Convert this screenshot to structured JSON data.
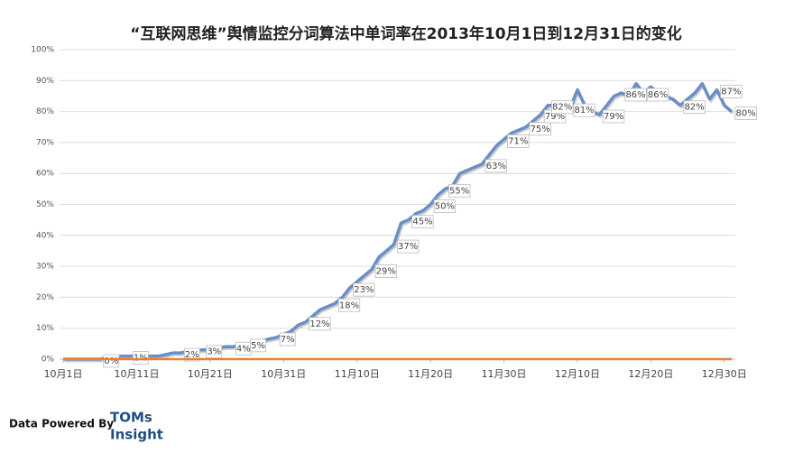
{
  "chart_data": {
    "type": "line",
    "title": "“互联网思维”舆情监控分词算法中单词率在2013年10月1日到12月31日的变化",
    "categories": [
      "10月1日",
      null,
      null,
      null,
      null,
      null,
      null,
      null,
      null,
      null,
      "10月11日",
      null,
      null,
      null,
      null,
      null,
      null,
      null,
      null,
      null,
      "10月21日",
      null,
      null,
      null,
      null,
      null,
      null,
      null,
      null,
      null,
      "10月31日",
      null,
      null,
      null,
      null,
      null,
      null,
      null,
      null,
      null,
      "11月10日",
      null,
      null,
      null,
      null,
      null,
      null,
      null,
      null,
      null,
      "11月20日",
      null,
      null,
      null,
      null,
      null,
      null,
      null,
      null,
      null,
      "11月30日",
      null,
      null,
      null,
      null,
      null,
      null,
      null,
      null,
      null,
      "12月10日",
      null,
      null,
      null,
      null,
      null,
      null,
      null,
      null,
      null,
      "12月20日",
      null,
      null,
      null,
      null,
      null,
      null,
      null,
      null,
      null,
      "12月30日",
      null
    ],
    "series": [
      {
        "color": "#6a8fc7",
        "values": [
          0,
          0,
          0,
          0,
          0,
          0,
          0.5,
          0.5,
          1,
          1,
          1,
          1,
          1,
          1,
          1.5,
          2,
          2,
          2.5,
          3,
          3,
          3,
          3.5,
          4,
          4,
          4.5,
          5,
          5,
          6,
          6.5,
          7,
          8,
          9,
          11,
          12,
          14,
          16,
          17,
          18,
          20,
          23,
          25,
          27,
          29,
          33,
          35,
          37,
          44,
          45,
          47,
          48,
          50,
          53,
          55,
          56,
          60,
          61,
          62,
          63,
          66,
          69,
          71,
          73,
          74,
          75,
          77,
          79,
          82,
          82,
          82,
          81,
          87,
          82,
          80,
          79,
          82,
          85,
          86,
          85,
          89,
          86,
          88,
          86,
          85,
          84,
          82,
          84,
          86,
          89,
          84,
          87,
          82,
          80
        ],
        "value_labels": [
          null,
          null,
          null,
          null,
          null,
          "0%",
          null,
          null,
          null,
          "1%",
          null,
          null,
          null,
          null,
          null,
          null,
          "2%",
          null,
          null,
          "3%",
          null,
          null,
          null,
          "4%",
          null,
          "5%",
          null,
          null,
          null,
          "7%",
          null,
          null,
          null,
          "12%",
          null,
          null,
          null,
          "18%",
          null,
          "23%",
          null,
          null,
          "29%",
          null,
          null,
          "37%",
          null,
          "45%",
          null,
          null,
          "50%",
          null,
          "55%",
          null,
          null,
          null,
          null,
          "63%",
          null,
          null,
          "71%",
          null,
          null,
          "75%",
          null,
          "79%",
          "82%",
          null,
          null,
          "81%",
          null,
          null,
          null,
          "79%",
          null,
          null,
          "86%",
          null,
          null,
          "86%",
          null,
          null,
          null,
          null,
          "82%",
          null,
          null,
          null,
          null,
          "87%",
          null,
          "80%"
        ]
      },
      {
        "color": "#ed7d31",
        "values": [
          0,
          0,
          0,
          0,
          0,
          0,
          0,
          0,
          0,
          0,
          0,
          0,
          0,
          0,
          0,
          0,
          0,
          0,
          0,
          0,
          0,
          0,
          0,
          0,
          0,
          0,
          0,
          0,
          0,
          0,
          0,
          0,
          0,
          0,
          0,
          0,
          0,
          0,
          0,
          0,
          0,
          0,
          0,
          0,
          0,
          0,
          0,
          0,
          0,
          0,
          0,
          0,
          0,
          0,
          0,
          0,
          0,
          0,
          0,
          0,
          0,
          0,
          0,
          0,
          0,
          0,
          0,
          0,
          0,
          0,
          0,
          0,
          0,
          0,
          0,
          0,
          0,
          0,
          0,
          0,
          0,
          0,
          0,
          0,
          0,
          0,
          0,
          0,
          0,
          0,
          0,
          0
        ]
      }
    ],
    "ylim": [
      0,
      100
    ],
    "yticks": [
      {
        "value": 0,
        "label": "0%"
      },
      {
        "value": 10,
        "label": "10%"
      },
      {
        "value": 20,
        "label": "20%"
      },
      {
        "value": 30,
        "label": "30%"
      },
      {
        "value": 40,
        "label": "40%"
      },
      {
        "value": 50,
        "label": "50%"
      },
      {
        "value": 60,
        "label": "60%"
      },
      {
        "value": 70,
        "label": "70%"
      },
      {
        "value": 80,
        "label": "80%"
      },
      {
        "value": 90,
        "label": "90%"
      },
      {
        "value": 100,
        "label": "100%"
      }
    ],
    "grid": true
  },
  "footer": {
    "credit": "Data Powered By",
    "brand_line1": "TOMs",
    "brand_line2": "Insight"
  }
}
